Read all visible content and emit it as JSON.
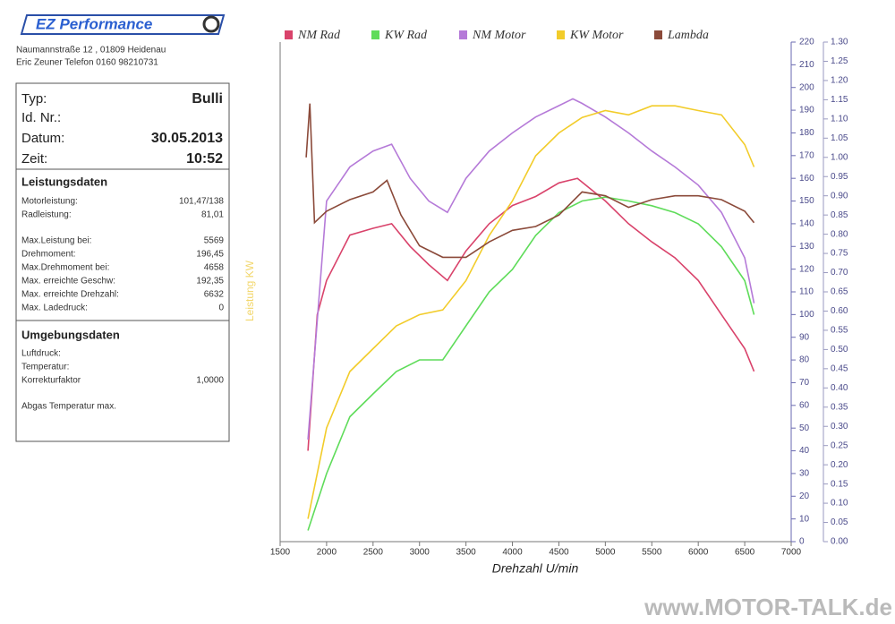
{
  "header": {
    "logo": "EZ Performance",
    "address": "Naumannstraße 12 , 01809 Heidenau",
    "contact": "Eric Zeuner  Telefon 0160 98210731"
  },
  "vehicle": [
    {
      "label": "Typ:",
      "value": "Bulli"
    },
    {
      "label": "Id. Nr.:"
    },
    {
      "label": "Datum:",
      "value": "30.05.2013"
    },
    {
      "label": "Zeit:",
      "value": "10:52"
    }
  ],
  "performance": {
    "title": "Leistungsdaten",
    "rows": [
      [
        "Motorleistung:",
        "101,47/138"
      ],
      [
        "Radleistung:",
        "81,01"
      ],
      [
        "Max.Leistung bei:",
        "5569"
      ],
      [
        "Drehmoment:",
        "196,45"
      ],
      [
        "Max.Drehmoment bei:",
        "4658"
      ],
      [
        "Max. erreichte Geschw:",
        "192,35"
      ],
      [
        "Max. erreichte Drehzahl:",
        "6632"
      ],
      [
        "Max. Ladedruck:",
        "0"
      ]
    ]
  },
  "environment": {
    "title": "Umgebungsdaten",
    "rows": [
      [
        "Luftdruck:"
      ],
      [
        "Temperatur:"
      ],
      [
        "Korrekturfaktor",
        "1,0000"
      ],
      [
        "Abgas Temperatur max."
      ]
    ]
  },
  "watermark": "www.MOTOR-TALK.de",
  "chart_data": {
    "type": "line",
    "x_label": "Drehzahl U/min",
    "y_label": "Leistung KW",
    "xlim": [
      1500,
      7000
    ],
    "xticks": [
      1500,
      2000,
      2500,
      3000,
      3500,
      4000,
      4500,
      5000,
      5500,
      6000,
      6500,
      7000
    ],
    "ylim": [
      0,
      116
    ],
    "y2lim": [
      0,
      220
    ],
    "y2ticks": [
      0,
      10,
      20,
      30,
      40,
      50,
      60,
      70,
      80,
      90,
      100,
      110,
      120,
      130,
      140,
      150,
      160,
      170,
      180,
      190,
      200,
      210,
      220
    ],
    "y3lim": [
      0,
      1.3
    ],
    "y3ticks": [
      {
        "value": 0,
        "label": "0.00"
      },
      0.05,
      {
        "value": 0.1,
        "label": "0.10"
      },
      0.15,
      {
        "value": 0.2,
        "label": "0.20"
      },
      0.25,
      {
        "value": 0.3,
        "label": "0.30"
      },
      0.35,
      {
        "value": 0.4,
        "label": "0.40"
      },
      0.45,
      {
        "value": 0.5,
        "label": "0.50"
      },
      0.55,
      {
        "value": 0.6,
        "label": "0.60"
      },
      0.65,
      {
        "value": 0.7,
        "label": "0.70"
      },
      0.75,
      {
        "value": 0.8,
        "label": "0.80"
      },
      0.85,
      {
        "value": 0.9,
        "label": "0.90"
      },
      0.95,
      {
        "value": 1,
        "label": "1.00"
      },
      1.05,
      {
        "value": 1.1,
        "label": "1.10"
      },
      1.15,
      {
        "value": 1.2,
        "label": "1.20"
      },
      1.25,
      {
        "value": 1.3,
        "label": "1.30"
      }
    ],
    "series": [
      {
        "name": "NM Rad",
        "color": "#d9436b",
        "axis": "y2",
        "x": [
          1800,
          1900,
          2000,
          2250,
          2500,
          2700,
          2900,
          3100,
          3300,
          3500,
          3750,
          4000,
          4250,
          4500,
          4700,
          5000,
          5250,
          5500,
          5750,
          6000,
          6250,
          6500,
          6600
        ],
        "values": [
          40,
          100,
          115,
          135,
          138,
          140,
          130,
          122,
          115,
          128,
          140,
          148,
          152,
          158,
          160,
          150,
          140,
          132,
          125,
          115,
          100,
          85,
          75
        ]
      },
      {
        "name": "KW Rad",
        "color": "#5fdc5a",
        "axis": "y",
        "x": [
          1800,
          2000,
          2250,
          2500,
          2750,
          3000,
          3250,
          3500,
          3750,
          4000,
          4250,
          4500,
          4750,
          5000,
          5250,
          5500,
          5750,
          6000,
          6250,
          6500,
          6600
        ],
        "values": [
          2.6,
          15.8,
          29,
          34.3,
          39.5,
          42.2,
          42.2,
          50.1,
          58,
          63.2,
          71.1,
          76.4,
          79.1,
          80,
          79.1,
          78,
          76.4,
          73.8,
          68.5,
          60.6,
          52.7
        ]
      },
      {
        "name": "NM Motor",
        "color": "#b57ad8",
        "axis": "y2",
        "x": [
          1800,
          2000,
          2250,
          2500,
          2700,
          2900,
          3100,
          3300,
          3500,
          3750,
          4000,
          4250,
          4500,
          4650,
          4750,
          5000,
          5250,
          5500,
          5750,
          6000,
          6250,
          6500,
          6600
        ],
        "values": [
          45,
          150,
          165,
          172,
          175,
          160,
          150,
          145,
          160,
          172,
          180,
          187,
          192,
          195,
          193,
          187,
          180,
          172,
          165,
          157,
          145,
          125,
          105
        ]
      },
      {
        "name": "KW Motor",
        "color": "#f2cc2a",
        "axis": "y",
        "x": [
          1800,
          2000,
          2250,
          2500,
          2750,
          3000,
          3250,
          3500,
          3750,
          4000,
          4250,
          4500,
          4750,
          5000,
          5250,
          5500,
          5750,
          6000,
          6250,
          6500,
          6600
        ],
        "values": [
          5.3,
          26.4,
          39.5,
          44.8,
          50.1,
          52.7,
          53.8,
          60.6,
          71.1,
          79.1,
          89.6,
          94.9,
          98.5,
          100.1,
          99.1,
          101.2,
          101.2,
          100.1,
          99.1,
          92.2,
          87
        ]
      },
      {
        "name": "Lambda",
        "color": "#8b4a3a",
        "axis": "y3",
        "x": [
          1780,
          1820,
          1870,
          2000,
          2250,
          2500,
          2650,
          2800,
          3000,
          3250,
          3500,
          3750,
          4000,
          4250,
          4500,
          4750,
          5000,
          5250,
          5500,
          5750,
          6000,
          6250,
          6500,
          6600
        ],
        "values": [
          1.0,
          1.14,
          0.83,
          0.86,
          0.89,
          0.91,
          0.94,
          0.85,
          0.77,
          0.74,
          0.74,
          0.78,
          0.81,
          0.82,
          0.85,
          0.91,
          0.9,
          0.87,
          0.89,
          0.9,
          0.9,
          0.89,
          0.86,
          0.83
        ]
      }
    ]
  }
}
